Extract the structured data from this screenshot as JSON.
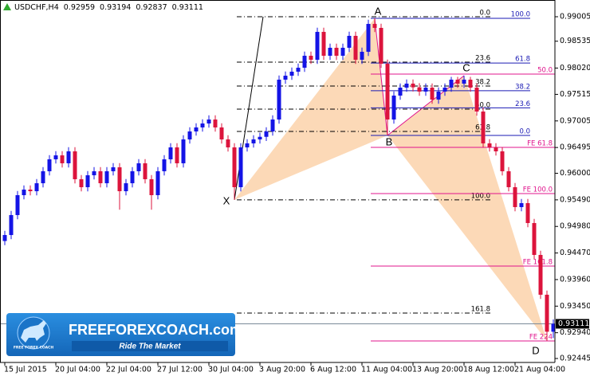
{
  "chart_data": {
    "type": "candlestick",
    "title": "USDCHF,H4",
    "categories": [
      "15 Jul 2015",
      null,
      null,
      null,
      null,
      null,
      null,
      null,
      "20 Jul 04:00",
      null,
      null,
      null,
      null,
      null,
      null,
      null,
      "22 Jul 04:00",
      null,
      null,
      null,
      null,
      null,
      null,
      null,
      "27 Jul 12:00",
      null,
      null,
      null,
      null,
      null,
      null,
      null,
      "30 Jul 04:00",
      null,
      null,
      null,
      null,
      null,
      null,
      null,
      "3 Aug 20:00",
      null,
      null,
      null,
      null,
      null,
      null,
      null,
      "6 Aug 12:00",
      null,
      null,
      null,
      null,
      null,
      null,
      null,
      "11 Aug 04:00",
      null,
      null,
      null,
      null,
      null,
      null,
      null,
      "13 Aug 20:00",
      null,
      null,
      null,
      null,
      null,
      null,
      null,
      "18 Aug 12:00",
      null,
      null,
      null,
      null,
      null,
      null,
      null,
      "21 Aug 04:00",
      null,
      null,
      null,
      null,
      null,
      null
    ],
    "open": [
      0.947,
      0.94815,
      0.95198,
      0.9558,
      0.95687,
      0.95656,
      0.95809,
      0.96039,
      0.96268,
      0.96344,
      0.96192,
      0.96421,
      0.95886,
      0.95733,
      0.95962,
      0.96039,
      0.95809,
      0.96039,
      0.96115,
      0.95656,
      0.95809,
      0.96039,
      0.96192,
      0.95886,
      0.9558,
      0.96039,
      0.96268,
      0.96497,
      0.96192,
      0.9665,
      0.96803,
      0.9688,
      0.96956,
      0.97032,
      0.9688,
      0.9665,
      0.96497,
      0.95733,
      0.96497,
      0.96574,
      0.9665,
      0.967,
      0.96803,
      0.97032,
      0.97797,
      0.97873,
      0.9795,
      0.98026,
      0.98256,
      0.98179,
      0.98714,
      0.98256,
      0.98409,
      0.98256,
      0.98409,
      0.98638,
      0.98179,
      0.98332,
      0.98867,
      0.98791,
      0.98103,
      0.97032,
      0.97491,
      0.97644,
      0.97721,
      0.9765,
      0.97568,
      0.97644,
      0.97415,
      0.97568,
      0.97644,
      0.97797,
      0.97721,
      0.97797,
      0.97644,
      0.97185,
      0.96574,
      0.96497,
      0.96421,
      0.96039,
      0.95733,
      0.95351,
      0.95427,
      0.95045,
      0.94433,
      0.93669,
      0.92959
    ],
    "high": [
      0.94895,
      0.95278,
      0.9566,
      0.95767,
      0.95767,
      0.95889,
      0.96119,
      0.96348,
      0.96424,
      0.96424,
      0.96501,
      0.96501,
      0.95966,
      0.96042,
      0.96119,
      0.96119,
      0.96119,
      0.96195,
      0.96195,
      0.95889,
      0.96119,
      0.96272,
      0.96272,
      0.95966,
      0.96119,
      0.96348,
      0.96577,
      0.96577,
      0.9673,
      0.96883,
      0.9696,
      0.97036,
      0.97112,
      0.97112,
      0.9696,
      0.9673,
      0.96577,
      0.96577,
      0.96654,
      0.9673,
      0.9678,
      0.96883,
      0.97112,
      0.97877,
      0.97953,
      0.9803,
      0.98106,
      0.98336,
      0.98336,
      0.98794,
      0.98794,
      0.98489,
      0.98489,
      0.98489,
      0.98718,
      0.98718,
      0.98412,
      0.98947,
      0.98974,
      0.98871,
      0.98183,
      0.97571,
      0.97724,
      0.97801,
      0.97801,
      0.9773,
      0.97724,
      0.97724,
      0.97648,
      0.97724,
      0.9785,
      0.9785,
      0.97873,
      0.9785,
      0.97724,
      0.97265,
      0.96654,
      0.96577,
      0.96501,
      0.96119,
      0.95813,
      0.95507,
      0.95507,
      0.95125,
      0.94513,
      0.93749,
      0.93194
    ],
    "low": [
      0.9462,
      0.94735,
      0.95118,
      0.955,
      0.95576,
      0.95576,
      0.95729,
      0.95959,
      0.96188,
      0.96112,
      0.96112,
      0.95806,
      0.95653,
      0.95653,
      0.95882,
      0.95729,
      0.95729,
      0.95959,
      0.953,
      0.95576,
      0.95729,
      0.95959,
      0.95806,
      0.953,
      0.955,
      0.95959,
      0.96188,
      0.96112,
      0.96112,
      0.9657,
      0.96723,
      0.968,
      0.96876,
      0.968,
      0.9657,
      0.96417,
      0.9549,
      0.95653,
      0.96417,
      0.96494,
      0.9657,
      0.9662,
      0.96723,
      0.96952,
      0.97717,
      0.97793,
      0.9787,
      0.97946,
      0.98099,
      0.98099,
      0.98176,
      0.98176,
      0.98176,
      0.98176,
      0.98329,
      0.98099,
      0.98099,
      0.98252,
      0.98711,
      0.98023,
      0.96727,
      0.96952,
      0.97411,
      0.97564,
      0.9757,
      0.97488,
      0.97488,
      0.97335,
      0.97335,
      0.97488,
      0.97564,
      0.97641,
      0.97641,
      0.97564,
      0.97105,
      0.96494,
      0.96417,
      0.96341,
      0.95959,
      0.95653,
      0.95271,
      0.95271,
      0.94965,
      0.94353,
      0.93589,
      0.92782,
      0.92837
    ],
    "close": [
      0.94815,
      0.95198,
      0.9558,
      0.95687,
      0.95656,
      0.95809,
      0.96039,
      0.96268,
      0.96344,
      0.96192,
      0.96421,
      0.95886,
      0.95733,
      0.95962,
      0.96039,
      0.95809,
      0.96039,
      0.96115,
      0.95656,
      0.95809,
      0.96039,
      0.96192,
      0.95886,
      0.9558,
      0.96039,
      0.96268,
      0.96497,
      0.96192,
      0.9665,
      0.96803,
      0.9688,
      0.96956,
      0.97032,
      0.9688,
      0.9665,
      0.96497,
      0.95733,
      0.96497,
      0.96574,
      0.9665,
      0.967,
      0.96803,
      0.97032,
      0.97797,
      0.97873,
      0.9795,
      0.98026,
      0.98256,
      0.98179,
      0.98714,
      0.98256,
      0.98409,
      0.98256,
      0.98409,
      0.98638,
      0.98179,
      0.98332,
      0.98867,
      0.98791,
      0.98103,
      0.97032,
      0.97491,
      0.97644,
      0.97721,
      0.9765,
      0.97568,
      0.97644,
      0.97415,
      0.97568,
      0.97644,
      0.97797,
      0.97721,
      0.97797,
      0.97644,
      0.97185,
      0.96574,
      0.96497,
      0.96421,
      0.96039,
      0.95733,
      0.95351,
      0.95427,
      0.95045,
      0.94433,
      0.93669,
      0.92959,
      0.93111
    ],
    "up_color": "#1414e6",
    "down_color": "#dc143c",
    "ylim": [
      0.92369,
      0.99326
    ],
    "yticks": [
      0.99005,
      0.98535,
      {
        "value": 0.9802,
        "label": "0.98020"
      },
      0.97515,
      0.97005,
      0.96495,
      {
        "value": 0.96,
        "label": "0.96000"
      },
      {
        "value": 0.9549,
        "label": "0.95490"
      },
      {
        "value": 0.9498,
        "label": "0.94980"
      },
      {
        "value": 0.9447,
        "label": "0.94470"
      },
      {
        "value": 0.9396,
        "label": "0.93960"
      },
      {
        "value": 0.9345,
        "label": "0.93450"
      },
      {
        "value": 0.9294,
        "label": "0.92940"
      },
      0.92445
    ],
    "grid": false,
    "fib_xa": {
      "color": "#000000",
      "levels": [
        {
          "label": "0.0",
          "value": 0.99005
        },
        {
          "label": "23.6",
          "value": 0.98133
        },
        {
          "label": "38.2",
          "value": 0.97675
        },
        {
          "label": "50.0",
          "value": 0.97231
        },
        {
          "label": "61.8",
          "value": 0.96803
        },
        {
          "label": "100.0",
          "value": 0.9549
        },
        {
          "label": "161.8",
          "value": 0.93317
        }
      ]
    },
    "fib_ab": {
      "color": "#1a1ab4",
      "levels": [
        {
          "label": "100.0",
          "value": 0.98974
        },
        {
          "label": "61.8",
          "value": 0.98116
        },
        {
          "label": "38.2",
          "value": 0.97585
        },
        {
          "label": "23.6",
          "value": 0.97257
        },
        {
          "label": "0.0",
          "value": 0.96727
        }
      ]
    },
    "fib_expansion": {
      "color": "#e0148c",
      "levels": [
        {
          "label": "50.0",
          "value": 0.97904
        },
        {
          "label": "FE 61.8",
          "value": 0.96497
        },
        {
          "label": "FE 100.0",
          "value": 0.95611
        },
        {
          "label": "FE 161.8",
          "value": 0.94219
        },
        {
          "label": "FE 224",
          "value": 0.92782
        }
      ]
    },
    "pattern": {
      "fill": "#fbd2aa",
      "edge": "#e0148c",
      "points": [
        {
          "label": "X",
          "index": 36,
          "value": 0.9549
        },
        {
          "label": "A",
          "index": 58,
          "value": 0.98974
        },
        {
          "label": "B",
          "index": 60,
          "value": 0.96727
        },
        {
          "label": "C",
          "index": 72,
          "value": 0.97873
        },
        {
          "label": "D",
          "index": 85,
          "value": 0.92782
        }
      ]
    }
  },
  "watermark": {
    "title": "FREEFOREXCOACH.com",
    "tagline": "Ride The Market",
    "icon_caption": "FREE FOREX COACH"
  }
}
